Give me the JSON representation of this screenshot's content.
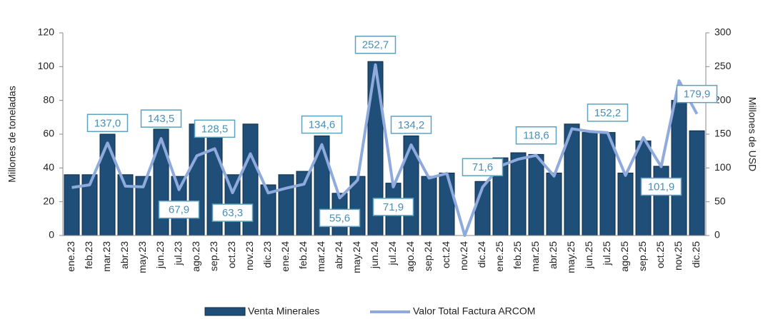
{
  "chart_data": {
    "type": "bar_line",
    "categories": [
      "ene.23",
      "feb.23",
      "mar.23",
      "abr.23",
      "may.23",
      "jun.23",
      "jul.23",
      "ago.23",
      "sep.23",
      "oct.23",
      "nov.23",
      "dic.23",
      "ene.24",
      "feb.24",
      "mar.24",
      "abr.24",
      "may.24",
      "jun.24",
      "jul.24",
      "ago.24",
      "sep.24",
      "oct.24",
      "nov.24",
      "dic.24",
      "ene.25",
      "feb.25",
      "mar.25",
      "abr.25",
      "may.25",
      "jun.25",
      "jul.25",
      "ago.25",
      "sep.25",
      "oct.25",
      "nov.25",
      "dic.25"
    ],
    "series": [
      {
        "name": "Venta Minerales",
        "color": "#1f4e79",
        "type": "bar",
        "values": [
          36,
          36,
          60,
          36,
          35,
          63,
          35,
          66,
          58,
          36,
          66,
          30,
          36,
          38,
          59,
          25,
          35,
          103,
          31,
          59,
          35,
          37,
          0,
          32,
          46,
          49,
          48,
          37,
          66,
          61,
          61,
          37,
          56,
          41,
          80,
          62
        ]
      },
      {
        "name": "Valor Total Factura ARCOM",
        "color": "#8faadc",
        "type": "line",
        "axis": "y2",
        "values": [
          71,
          75,
          137.0,
          73,
          72,
          143.5,
          67.9,
          118,
          128.5,
          63.3,
          121,
          63,
          70,
          76,
          134.6,
          55.6,
          82,
          252.7,
          71.9,
          134.2,
          85,
          92,
          0,
          71.6,
          103,
          113,
          118.6,
          88,
          158,
          154,
          152.2,
          89,
          145,
          101.9,
          229,
          179.9
        ],
        "value_labels": [
          null,
          null,
          "137,0",
          null,
          null,
          "143,5",
          "67,9",
          null,
          "128,5",
          "63,3",
          null,
          null,
          null,
          null,
          "134,6",
          "55,6",
          null,
          "252,7",
          "71,9",
          "134,2",
          null,
          null,
          null,
          "71,6",
          null,
          null,
          "118,6",
          null,
          null,
          null,
          "152,2",
          null,
          null,
          "101,9",
          null,
          "179,9"
        ]
      }
    ],
    "ylabel": "Millones de toneladas",
    "y2label": "Millones de USD",
    "ylim": [
      0,
      120
    ],
    "yticks": [
      0,
      20,
      40,
      60,
      80,
      100,
      120
    ],
    "y2lim": [
      0,
      300
    ],
    "y2ticks": [
      0,
      50,
      100,
      150,
      200,
      250,
      300
    ]
  }
}
